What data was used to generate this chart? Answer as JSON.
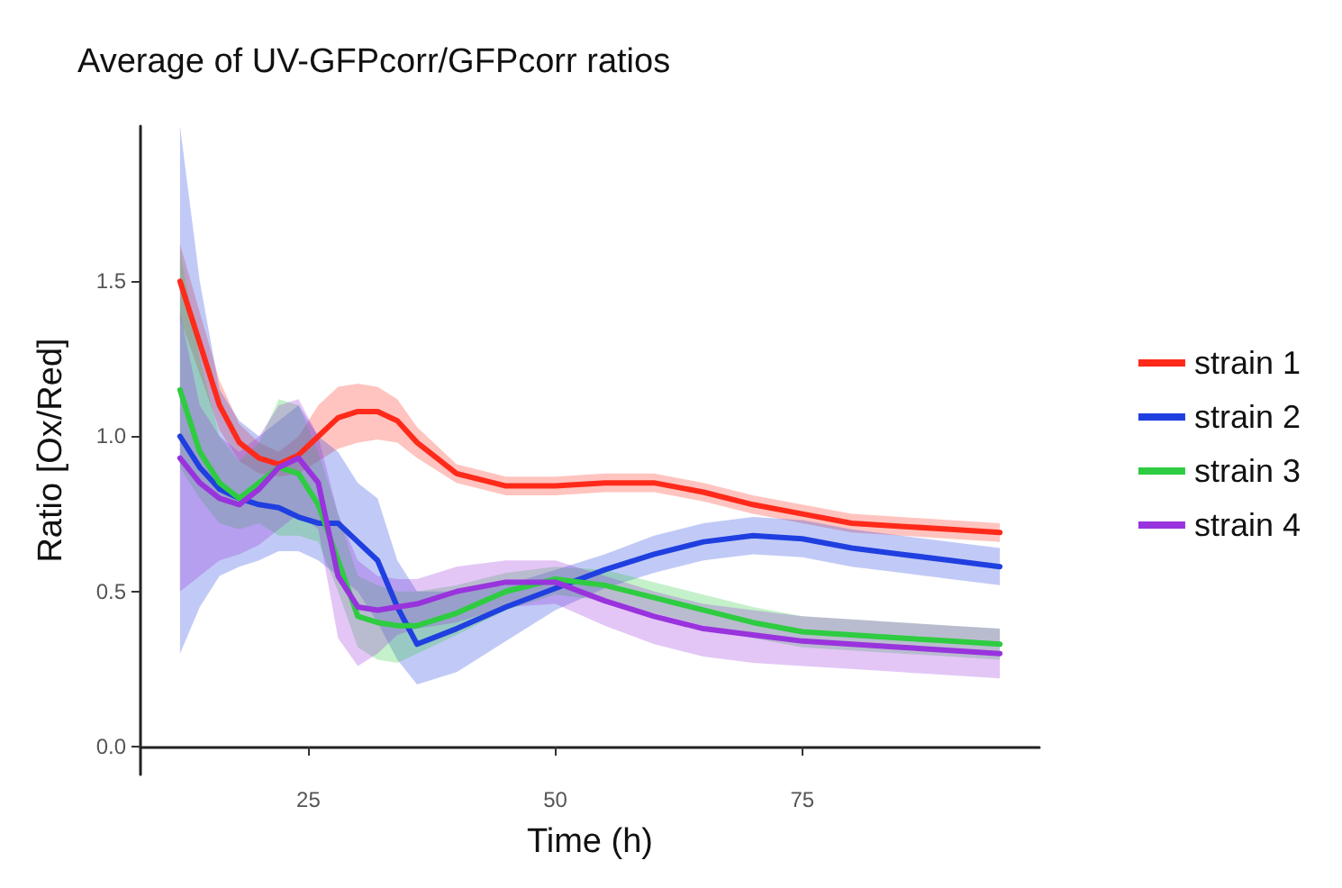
{
  "chart_data": {
    "type": "line",
    "title": "Average of UV-GFPcorr/GFPcorr ratios",
    "xlabel": "Time (h)",
    "ylabel": "Ratio [Ox/Red]",
    "x": [
      12,
      14,
      16,
      18,
      20,
      22,
      24,
      26,
      28,
      30,
      32,
      34,
      36,
      40,
      45,
      50,
      55,
      60,
      65,
      70,
      75,
      80,
      85,
      90,
      95
    ],
    "series": [
      {
        "name": "strain 1",
        "color": "#ff2a1a",
        "values": [
          1.5,
          1.3,
          1.1,
          0.98,
          0.93,
          0.91,
          0.94,
          1.0,
          1.06,
          1.08,
          1.08,
          1.05,
          0.98,
          0.88,
          0.84,
          0.84,
          0.85,
          0.85,
          0.82,
          0.78,
          0.75,
          0.72,
          0.71,
          0.7,
          0.69
        ],
        "lower": [
          1.38,
          1.2,
          1.02,
          0.92,
          0.88,
          0.87,
          0.88,
          0.92,
          0.96,
          0.98,
          0.99,
          0.98,
          0.93,
          0.85,
          0.81,
          0.81,
          0.82,
          0.82,
          0.79,
          0.75,
          0.72,
          0.69,
          0.68,
          0.67,
          0.66
        ],
        "upper": [
          1.62,
          1.4,
          1.18,
          1.04,
          0.98,
          0.95,
          1.0,
          1.1,
          1.16,
          1.17,
          1.16,
          1.12,
          1.03,
          0.91,
          0.87,
          0.87,
          0.88,
          0.88,
          0.85,
          0.81,
          0.78,
          0.75,
          0.74,
          0.73,
          0.72
        ]
      },
      {
        "name": "strain 2",
        "color": "#1f3fe0",
        "values": [
          1.0,
          0.9,
          0.83,
          0.8,
          0.78,
          0.77,
          0.74,
          0.72,
          0.72,
          0.66,
          0.6,
          0.45,
          0.33,
          0.38,
          0.45,
          0.51,
          0.57,
          0.62,
          0.66,
          0.68,
          0.67,
          0.64,
          0.62,
          0.6,
          0.58
        ],
        "lower": [
          0.3,
          0.45,
          0.55,
          0.58,
          0.6,
          0.63,
          0.63,
          0.6,
          0.55,
          0.5,
          0.4,
          0.28,
          0.2,
          0.24,
          0.34,
          0.44,
          0.51,
          0.56,
          0.6,
          0.62,
          0.61,
          0.58,
          0.56,
          0.54,
          0.52
        ],
        "upper": [
          2.0,
          1.5,
          1.15,
          1.05,
          1.0,
          1.05,
          1.1,
          1.0,
          0.95,
          0.85,
          0.8,
          0.6,
          0.5,
          0.5,
          0.52,
          0.57,
          0.62,
          0.68,
          0.72,
          0.74,
          0.73,
          0.7,
          0.68,
          0.66,
          0.64
        ]
      },
      {
        "name": "strain 3",
        "color": "#2ecc40",
        "values": [
          1.15,
          0.95,
          0.85,
          0.8,
          0.85,
          0.9,
          0.88,
          0.78,
          0.6,
          0.42,
          0.4,
          0.39,
          0.39,
          0.43,
          0.5,
          0.54,
          0.52,
          0.48,
          0.44,
          0.4,
          0.37,
          0.36,
          0.35,
          0.34,
          0.33
        ],
        "lower": [
          0.9,
          0.8,
          0.72,
          0.7,
          0.72,
          0.68,
          0.68,
          0.66,
          0.5,
          0.32,
          0.28,
          0.27,
          0.3,
          0.36,
          0.44,
          0.49,
          0.47,
          0.43,
          0.39,
          0.35,
          0.32,
          0.31,
          0.3,
          0.29,
          0.28
        ],
        "upper": [
          1.6,
          1.25,
          1.0,
          0.92,
          0.98,
          1.12,
          1.1,
          0.95,
          0.75,
          0.55,
          0.52,
          0.5,
          0.5,
          0.52,
          0.56,
          0.58,
          0.57,
          0.53,
          0.49,
          0.45,
          0.42,
          0.41,
          0.4,
          0.39,
          0.38
        ]
      },
      {
        "name": "strain 4",
        "color": "#9933dd",
        "values": [
          0.93,
          0.85,
          0.8,
          0.78,
          0.83,
          0.9,
          0.93,
          0.85,
          0.55,
          0.45,
          0.44,
          0.45,
          0.46,
          0.5,
          0.53,
          0.53,
          0.47,
          0.42,
          0.38,
          0.36,
          0.34,
          0.33,
          0.32,
          0.31,
          0.3
        ],
        "lower": [
          0.5,
          0.55,
          0.6,
          0.62,
          0.65,
          0.7,
          0.75,
          0.7,
          0.35,
          0.26,
          0.3,
          0.36,
          0.38,
          0.4,
          0.45,
          0.46,
          0.39,
          0.33,
          0.29,
          0.27,
          0.26,
          0.25,
          0.24,
          0.23,
          0.22
        ],
        "upper": [
          1.4,
          1.1,
          1.0,
          0.95,
          1.0,
          1.1,
          1.12,
          1.0,
          0.75,
          0.6,
          0.55,
          0.54,
          0.54,
          0.58,
          0.6,
          0.6,
          0.55,
          0.5,
          0.46,
          0.44,
          0.42,
          0.41,
          0.4,
          0.39,
          0.38
        ]
      }
    ],
    "xlim": [
      8,
      99
    ],
    "xticks": [
      25,
      50,
      75
    ],
    "ylim": [
      -0.09,
      2.0
    ],
    "yticks": [
      {
        "value": 0,
        "label": "0.0"
      },
      {
        "value": 0.5,
        "label": "0.5"
      },
      {
        "value": 1,
        "label": "1.0"
      },
      {
        "value": 1.5,
        "label": "1.5"
      }
    ],
    "legend": "right"
  }
}
